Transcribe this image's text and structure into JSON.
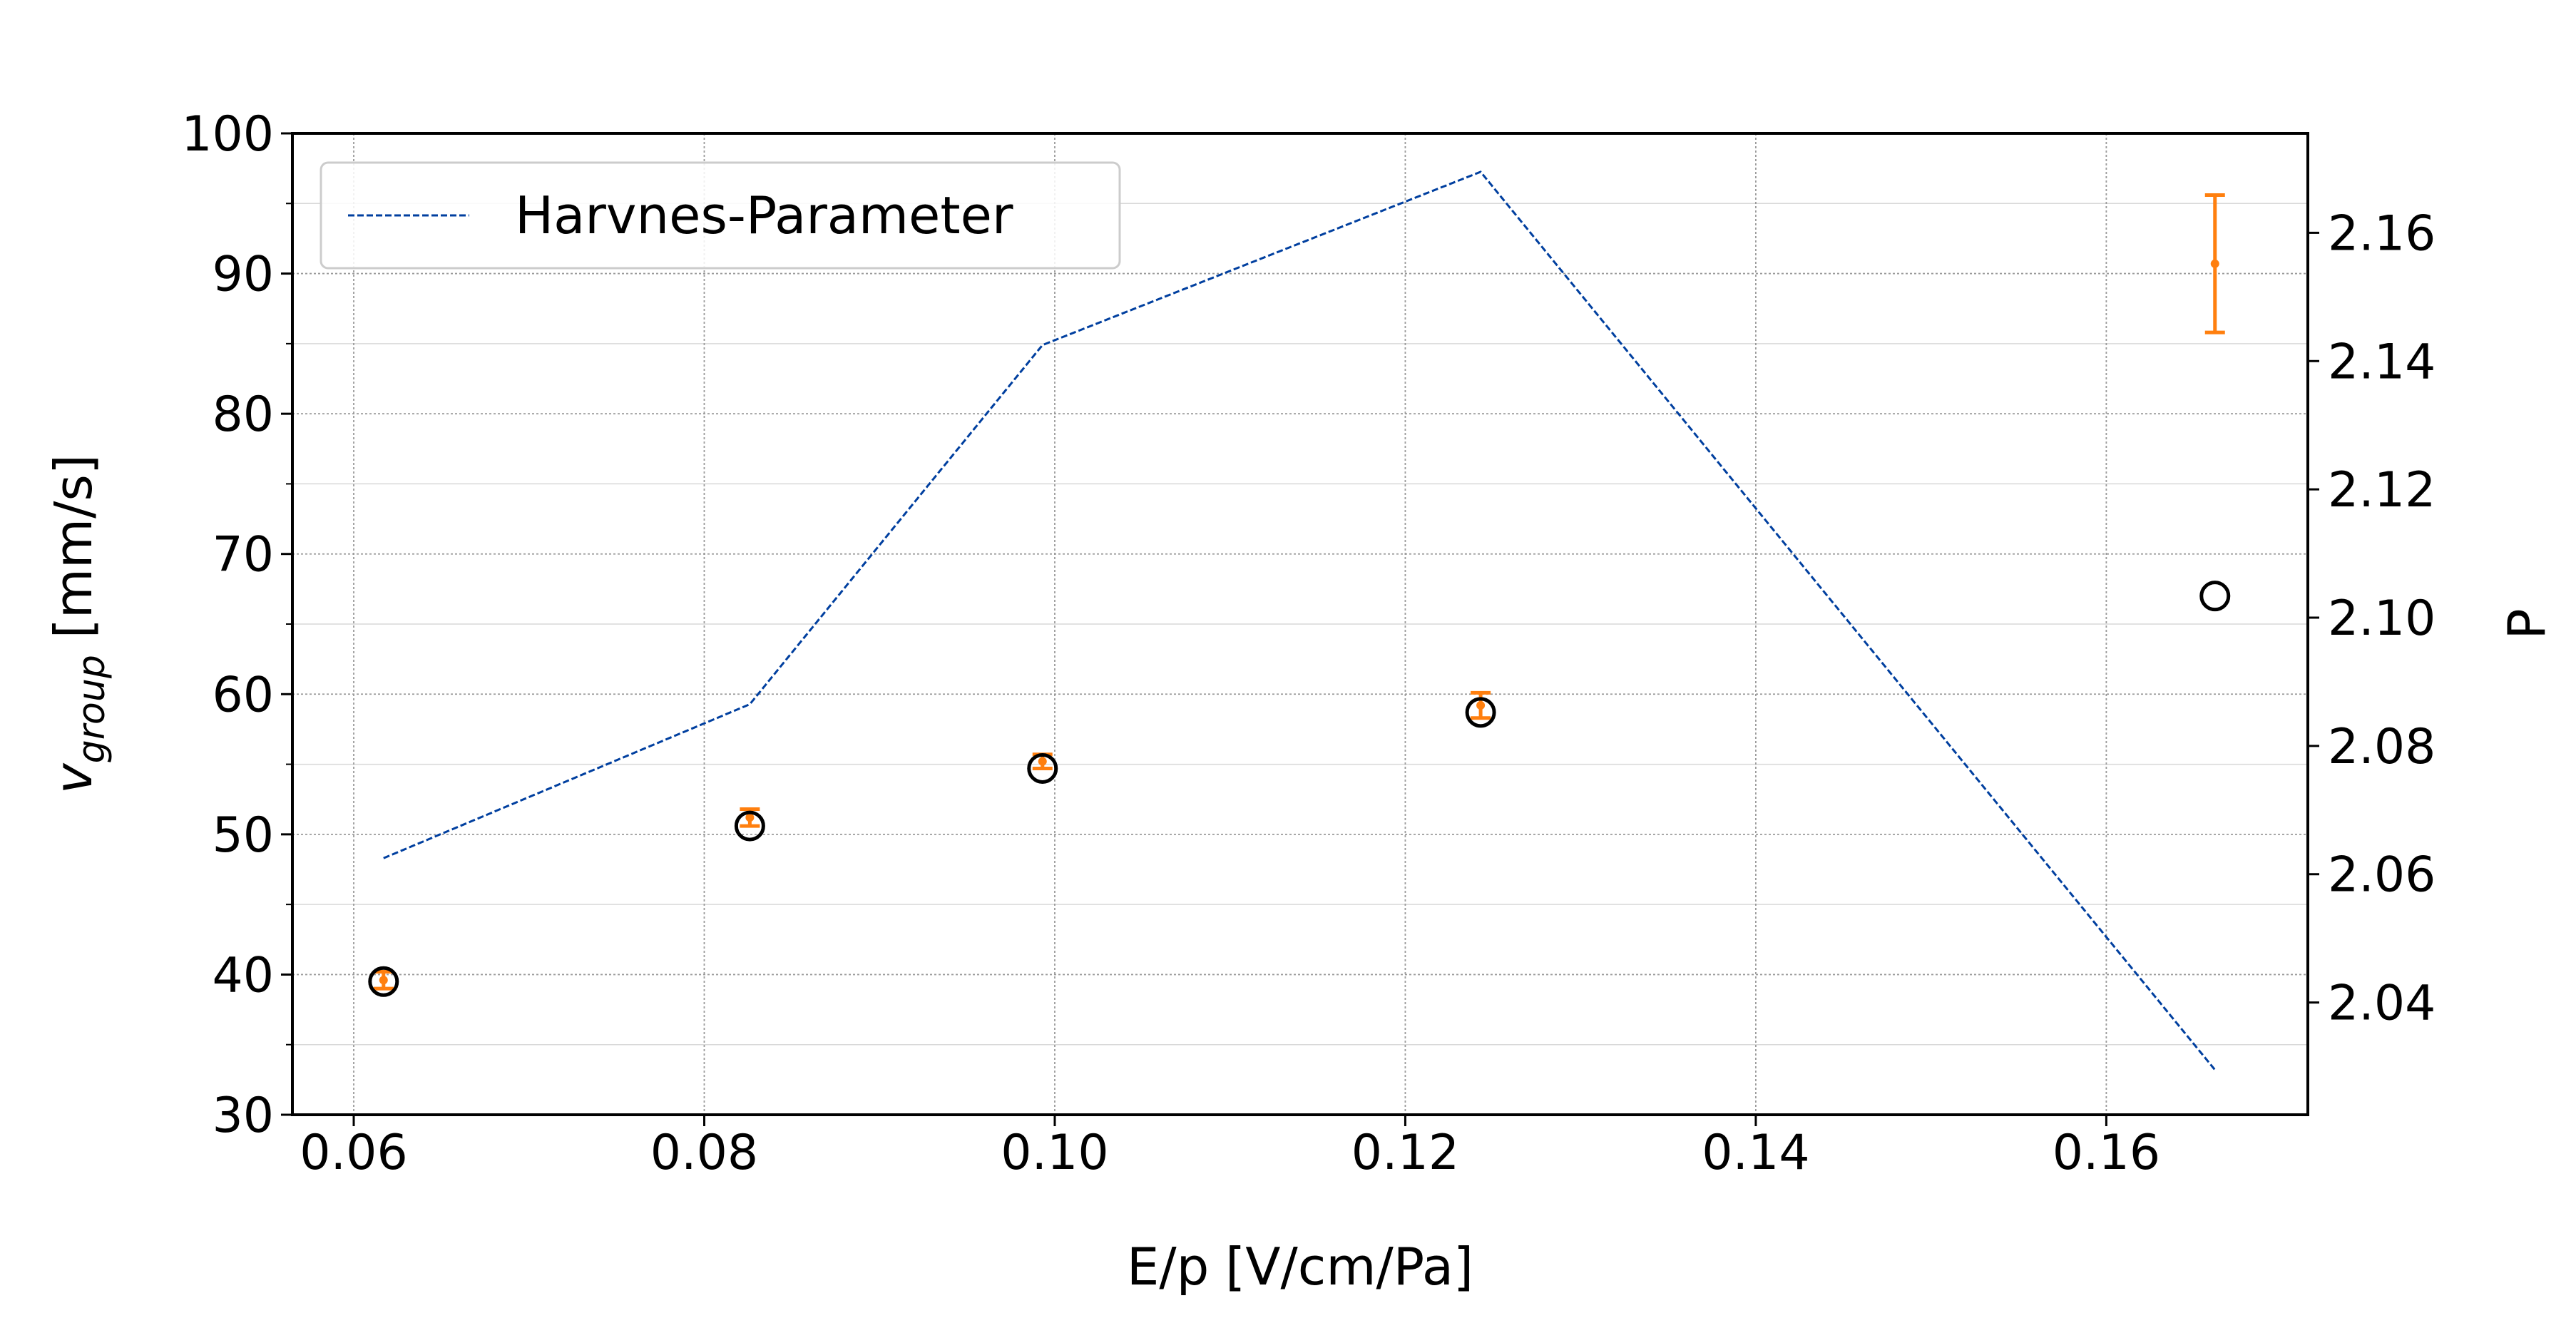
{
  "chart_data": {
    "type": "scatter",
    "xlabel": "E/p [V/cm/Pa]",
    "ylabel": {
      "main": "v",
      "sub": "group",
      "unit": " [mm/s]"
    },
    "y2label": "P",
    "xlim": [
      0.0565,
      0.1715
    ],
    "ylim": [
      30,
      100
    ],
    "y2lim": [
      2.0225,
      2.1755
    ],
    "xticks": [
      0.06,
      0.08,
      0.1,
      0.12,
      0.14,
      0.16
    ],
    "xtick_labels": [
      "0.06",
      "0.08",
      "0.10",
      "0.12",
      "0.14",
      "0.16"
    ],
    "yticks": [
      30,
      40,
      50,
      60,
      70,
      80,
      90,
      100
    ],
    "ytick_labels": [
      "30",
      "40",
      "50",
      "60",
      "70",
      "80",
      "90",
      "100"
    ],
    "y_minor_step": 5,
    "y2ticks": [
      2.04,
      2.06,
      2.08,
      2.1,
      2.12,
      2.14,
      2.16
    ],
    "y2tick_labels": [
      "2.04",
      "2.06",
      "2.08",
      "2.10",
      "2.12",
      "2.14",
      "2.16"
    ],
    "grid": true,
    "legend": {
      "position": "top-left",
      "entries": [
        "Harvnes-Parameter"
      ]
    },
    "series": [
      {
        "kind": "errorbar",
        "axis": "left",
        "color": "#ff7f0e",
        "x": [
          0.0617,
          0.0826,
          0.0993,
          0.1243,
          0.1662
        ],
        "y": [
          39.6,
          51.2,
          55.2,
          59.2,
          90.7
        ],
        "yerr": [
          0.6,
          0.6,
          0.5,
          0.9,
          4.9
        ]
      },
      {
        "kind": "scatter",
        "axis": "left",
        "marker": "open-circle",
        "color": "#000000",
        "x": [
          0.0617,
          0.0826,
          0.0993,
          0.1243,
          0.1662
        ],
        "y": [
          39.5,
          50.6,
          54.7,
          58.7,
          67.0
        ]
      },
      {
        "name": "Harvnes-Parameter",
        "kind": "line",
        "axis": "right",
        "style": "dashed",
        "color": "#003f9f",
        "x": [
          0.0617,
          0.0826,
          0.0993,
          0.1243,
          0.1662
        ],
        "y": [
          2.0625,
          2.0865,
          2.1425,
          2.1695,
          2.0295
        ]
      }
    ]
  }
}
